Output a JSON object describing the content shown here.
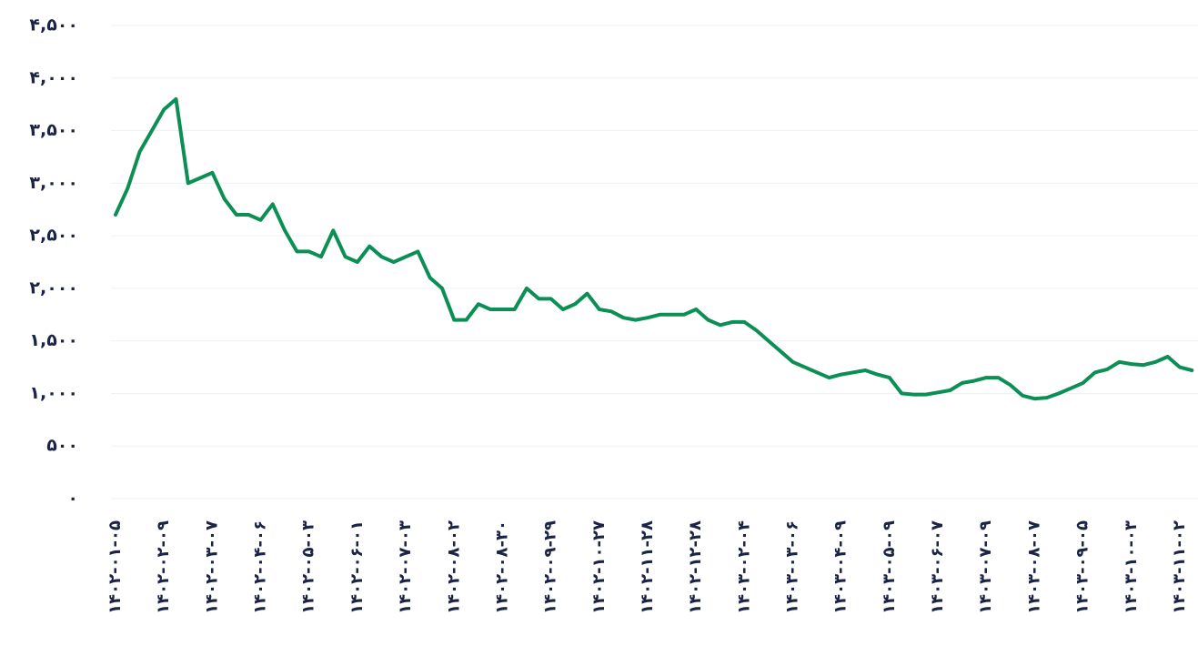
{
  "chart_data": {
    "type": "line",
    "categories": [
      "۱۴۰۲-۰۱-۰۵",
      null,
      null,
      null,
      "۱۴۰۲-۰۲-۰۹",
      null,
      null,
      null,
      "۱۴۰۲-۰۳-۰۷",
      null,
      null,
      null,
      "۱۴۰۲-۰۴-۰۶",
      null,
      null,
      null,
      "۱۴۰۲-۰۵-۰۳",
      null,
      null,
      null,
      "۱۴۰۲-۰۶-۰۱",
      null,
      null,
      null,
      "۱۴۰۲-۰۷-۰۳",
      null,
      null,
      null,
      "۱۴۰۲-۰۸-۰۲",
      null,
      null,
      null,
      "۱۴۰۲-۰۸-۳۰",
      null,
      null,
      null,
      "۱۴۰۲-۰۹-۲۹",
      null,
      null,
      null,
      "۱۴۰۲-۱۰-۲۷",
      null,
      null,
      null,
      "۱۴۰۲-۱۱-۲۸",
      null,
      null,
      null,
      "۱۴۰۲-۱۲-۲۸",
      null,
      null,
      null,
      "۱۴۰۳-۰۲-۰۴",
      null,
      null,
      null,
      "۱۴۰۳-۰۳-۰۶",
      null,
      null,
      null,
      "۱۴۰۳-۰۴-۰۹",
      null,
      null,
      null,
      "۱۴۰۳-۰۵-۰۹",
      null,
      null,
      null,
      "۱۴۰۳-۰۶-۰۷",
      null,
      null,
      null,
      "۱۴۰۳-۰۷-۰۹",
      null,
      null,
      null,
      "۱۴۰۳-۰۸-۰۷",
      null,
      null,
      null,
      "۱۴۰۳-۰۹-۰۵",
      null,
      null,
      null,
      "۱۴۰۳-۱۰-۰۳",
      null,
      null,
      null,
      "۱۴۰۳-۱۱-۰۲",
      null
    ],
    "series": [
      {
        "color": "#0b8f55",
        "values": [
          2700,
          2950,
          3300,
          3500,
          3700,
          3800,
          3000,
          3050,
          3100,
          2850,
          2700,
          2700,
          2650,
          2800,
          2550,
          2350,
          2350,
          2300,
          2550,
          2300,
          2250,
          2400,
          2300,
          2250,
          2300,
          2350,
          2100,
          2000,
          1700,
          1700,
          1850,
          1800,
          1800,
          1800,
          2000,
          1900,
          1900,
          1800,
          1850,
          1950,
          1800,
          1780,
          1720,
          1700,
          1720,
          1750,
          1750,
          1750,
          1800,
          1700,
          1650,
          1680,
          1680,
          1600,
          1500,
          1400,
          1300,
          1250,
          1200,
          1150,
          1180,
          1200,
          1220,
          1180,
          1150,
          1000,
          990,
          990,
          1010,
          1030,
          1100,
          1120,
          1150,
          1150,
          1080,
          980,
          950,
          960,
          1000,
          1050,
          1100,
          1200,
          1230,
          1300,
          1280,
          1270,
          1300,
          1350,
          1250,
          1220
        ]
      }
    ],
    "ylim": [
      0,
      4500
    ],
    "yticks": [
      {
        "value": 0,
        "label": "۰"
      },
      {
        "value": 500,
        "label": "۵۰۰"
      },
      {
        "value": 1000,
        "label": "۱,۰۰۰"
      },
      {
        "value": 1500,
        "label": "۱,۵۰۰"
      },
      {
        "value": 2000,
        "label": "۲,۰۰۰"
      },
      {
        "value": 2500,
        "label": "۲,۵۰۰"
      },
      {
        "value": 3000,
        "label": "۳,۰۰۰"
      },
      {
        "value": 3500,
        "label": "۳,۵۰۰"
      },
      {
        "value": 4000,
        "label": "۴,۰۰۰"
      },
      {
        "value": 4500,
        "label": "۴,۵۰۰"
      }
    ],
    "grid": true
  }
}
